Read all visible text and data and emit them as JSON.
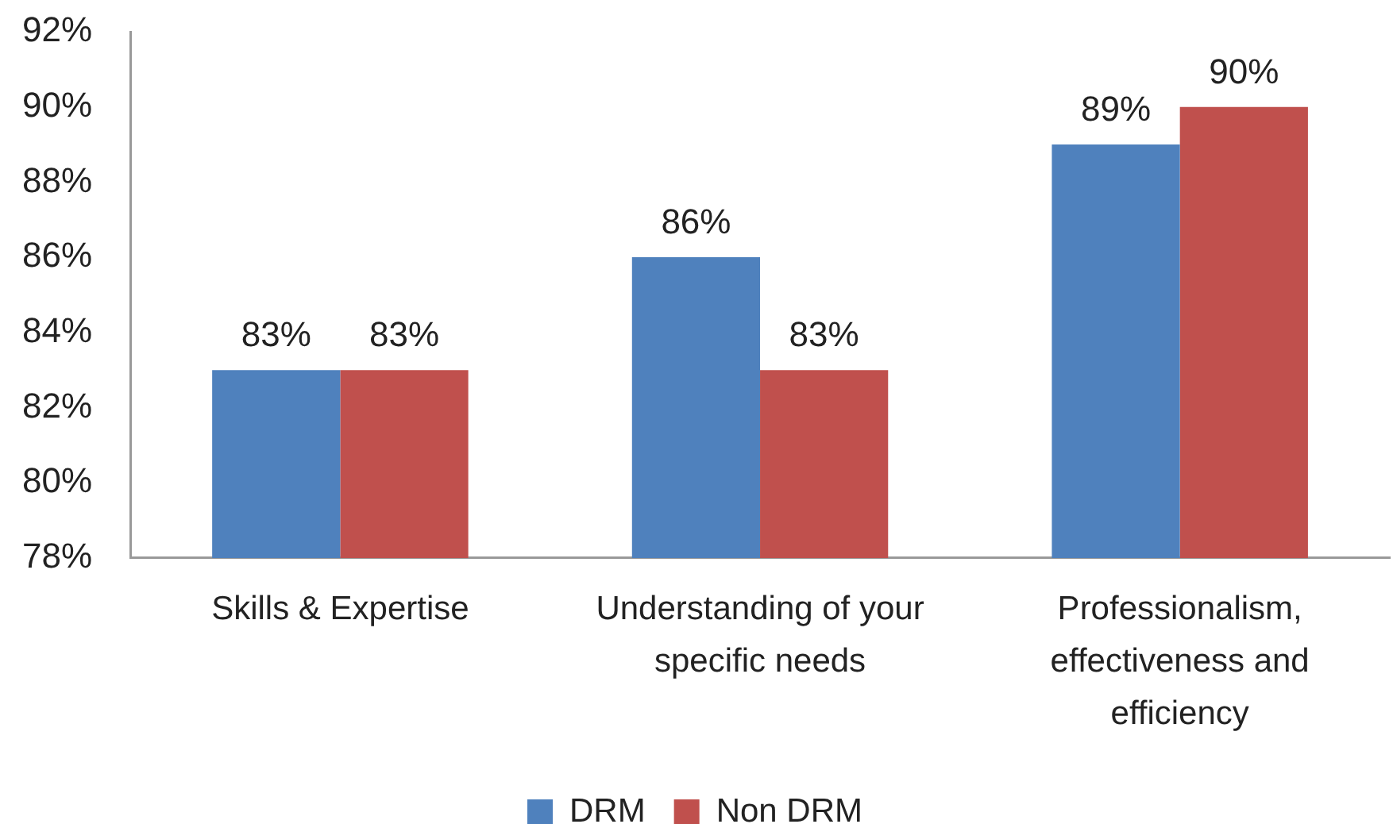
{
  "chart_data": {
    "type": "bar",
    "categories": [
      "Skills & Expertise",
      "Understanding of your specific needs",
      "Professionalism, effectiveness and efficiency"
    ],
    "series": [
      {
        "name": "DRM",
        "color": "#4f81bd",
        "values": [
          83,
          86,
          89
        ],
        "value_labels": [
          "83%",
          "86%",
          "89%"
        ]
      },
      {
        "name": "Non DRM",
        "color": "#c0504d",
        "values": [
          83,
          83,
          90
        ],
        "value_labels": [
          "83%",
          "83%",
          "90%"
        ]
      }
    ],
    "ylim": [
      78,
      92
    ],
    "yticks": [
      {
        "value": 78,
        "label": "78%"
      },
      {
        "value": 80,
        "label": "80%"
      },
      {
        "value": 82,
        "label": "82%"
      },
      {
        "value": 84,
        "label": "84%"
      },
      {
        "value": 86,
        "label": "86%"
      },
      {
        "value": 88,
        "label": "88%"
      },
      {
        "value": 90,
        "label": "90%"
      },
      {
        "value": 92,
        "label": "92%"
      }
    ],
    "grid": false,
    "legend": "bottom"
  }
}
